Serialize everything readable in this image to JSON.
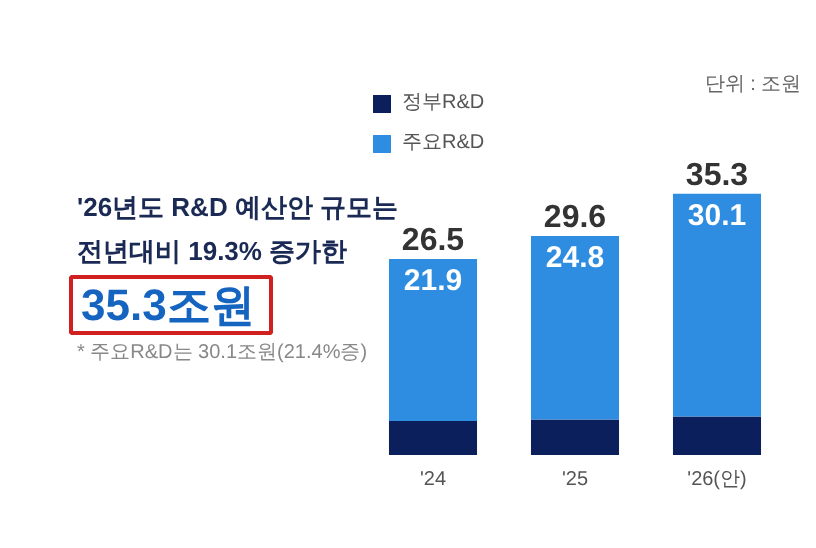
{
  "chart_data": {
    "type": "bar",
    "stacked": true,
    "categories": [
      "'24",
      "'25",
      "'26(안)"
    ],
    "series": [
      {
        "name": "정부R&D",
        "color": "#0b1f5c",
        "values": [
          4.6,
          4.8,
          5.2
        ]
      },
      {
        "name": "주요R&D",
        "color": "#2e8de0",
        "values": [
          21.9,
          24.8,
          30.1
        ],
        "value_labels": [
          "21.9",
          "24.8",
          "30.1"
        ]
      }
    ],
    "totals": [
      "26.5",
      "29.6",
      "35.3"
    ],
    "legend": "top left",
    "annotations": [
      "'26년도 R&D 예산안 규모는",
      "전년대비 19.3% 증가한",
      "35.3조원",
      "* 주요R&D는 30.1조원(21.4%증)",
      "단위 : 조원"
    ]
  }
}
